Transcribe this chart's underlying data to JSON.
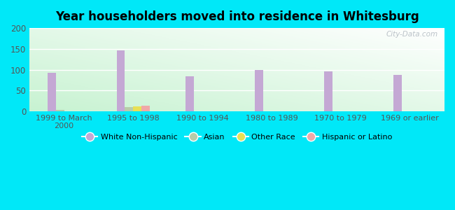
{
  "title": "Year householders moved into residence in Whitesburg",
  "categories": [
    "1999 to March\n2000",
    "1995 to 1998",
    "1990 to 1994",
    "1980 to 1989",
    "1970 to 1979",
    "1969 or earlier"
  ],
  "series": {
    "White Non-Hispanic": [
      93,
      147,
      84,
      100,
      95,
      88
    ],
    "Asian": [
      4,
      10,
      0,
      0,
      0,
      0
    ],
    "Other Race": [
      0,
      11,
      0,
      0,
      0,
      0
    ],
    "Hispanic or Latino": [
      0,
      13,
      0,
      0,
      0,
      0
    ]
  },
  "colors": {
    "White Non-Hispanic": "#c4a8d4",
    "Asian": "#b8ccaa",
    "Other Race": "#e8e055",
    "Hispanic or Latino": "#f0a8a8"
  },
  "ylim": [
    0,
    200
  ],
  "yticks": [
    0,
    50,
    100,
    150,
    200
  ],
  "outer_background": "#00e8f8",
  "bar_width": 0.12,
  "watermark": "City-Data.com"
}
